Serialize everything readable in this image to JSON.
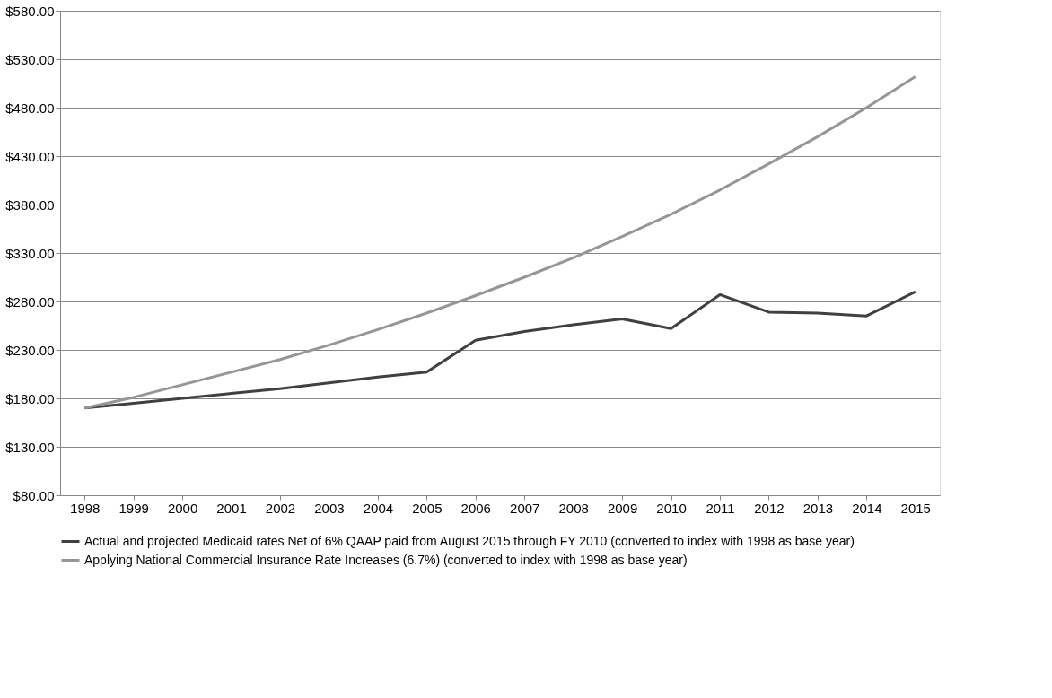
{
  "chart_data": {
    "type": "line",
    "categories": [
      "1998",
      "1999",
      "2000",
      "2001",
      "2002",
      "2003",
      "2004",
      "2005",
      "2006",
      "2007",
      "2008",
      "2009",
      "2010",
      "2011",
      "2012",
      "2013",
      "2014",
      "2015"
    ],
    "series": [
      {
        "name": "Actual and projected Medicaid rates Net of 6% QAAP paid from August 2015 through FY 2010 (converted to index with 1998 as base year)",
        "color": "#404040",
        "values": [
          170,
          175,
          180,
          185,
          190,
          196,
          202,
          207,
          240,
          249,
          256,
          262,
          252,
          287,
          269,
          268,
          265,
          290
        ]
      },
      {
        "name": "Applying National Commercial Insurance Rate Increases (6.7%) (converted to index with 1998 as base year)",
        "color": "#969696",
        "values": [
          170,
          181,
          194,
          207,
          220,
          235,
          251,
          268,
          286,
          305,
          325,
          347,
          370,
          395,
          422,
          450,
          480,
          512
        ]
      }
    ],
    "ylim": [
      80,
      580
    ],
    "yticks": [
      {
        "value": 80,
        "label": "$80.00"
      },
      {
        "value": 130,
        "label": "$130.00"
      },
      {
        "value": 180,
        "label": "$180.00"
      },
      {
        "value": 230,
        "label": "$230.00"
      },
      {
        "value": 280,
        "label": "$280.00"
      },
      {
        "value": 330,
        "label": "$330.00"
      },
      {
        "value": 380,
        "label": "$380.00"
      },
      {
        "value": 430,
        "label": "$430.00"
      },
      {
        "value": 480,
        "label": "$480.00"
      },
      {
        "value": 530,
        "label": "$530.00"
      },
      {
        "value": 580,
        "label": "$580.00"
      }
    ],
    "grid": "y",
    "legend": "bottom",
    "marker": "none",
    "line_style": "solid"
  }
}
